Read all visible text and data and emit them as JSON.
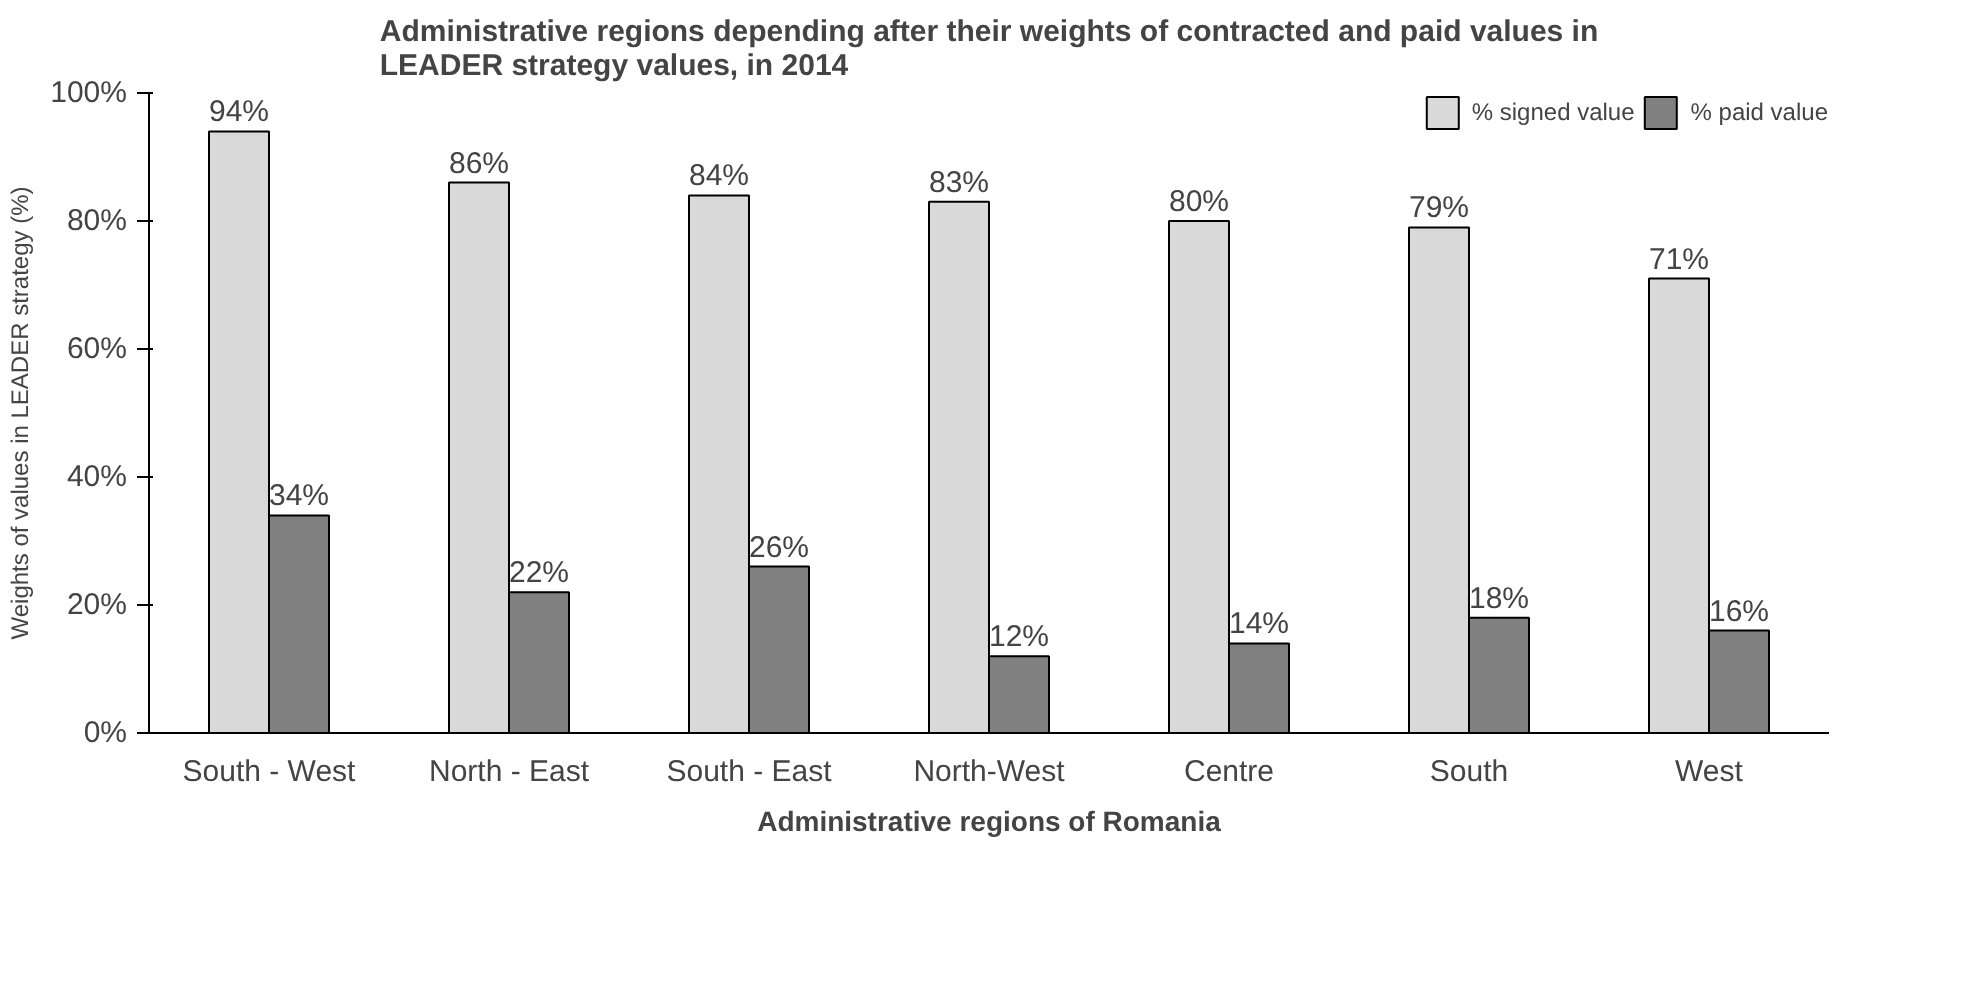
{
  "chart_data": {
    "type": "bar",
    "title": "Administrative regions depending after their weights of contracted and paid values in LEADER strategy values, in 2014",
    "xlabel": "Administrative regions of Romania",
    "ylabel": "Weights of values in LEADER strategy (%)",
    "categories": [
      "South - West",
      "North - East",
      "South - East",
      "North-West",
      "Centre",
      "South",
      "West"
    ],
    "series": [
      {
        "name": "% signed value",
        "color": "#d9d9d9",
        "values": [
          94,
          86,
          84,
          83,
          80,
          79,
          71
        ],
        "value_labels": [
          "94%",
          "86%",
          "84%",
          "83%",
          "80%",
          "79%",
          "71%"
        ]
      },
      {
        "name": "% paid value",
        "color": "#808080",
        "values": [
          34,
          22,
          26,
          12,
          14,
          18,
          16
        ],
        "value_labels": [
          "34%",
          "22%",
          "26%",
          "12%",
          "14%",
          "18%",
          "16%"
        ]
      }
    ],
    "ylim": [
      0,
      100
    ],
    "yticks": [
      {
        "value": 0,
        "label": "0%"
      },
      {
        "value": 20,
        "label": "20%"
      },
      {
        "value": 40,
        "label": "40%"
      },
      {
        "value": 60,
        "label": "60%"
      },
      {
        "value": 80,
        "label": "80%"
      },
      {
        "value": 100,
        "label": "100%"
      }
    ],
    "grid": false,
    "legend": "top right"
  }
}
